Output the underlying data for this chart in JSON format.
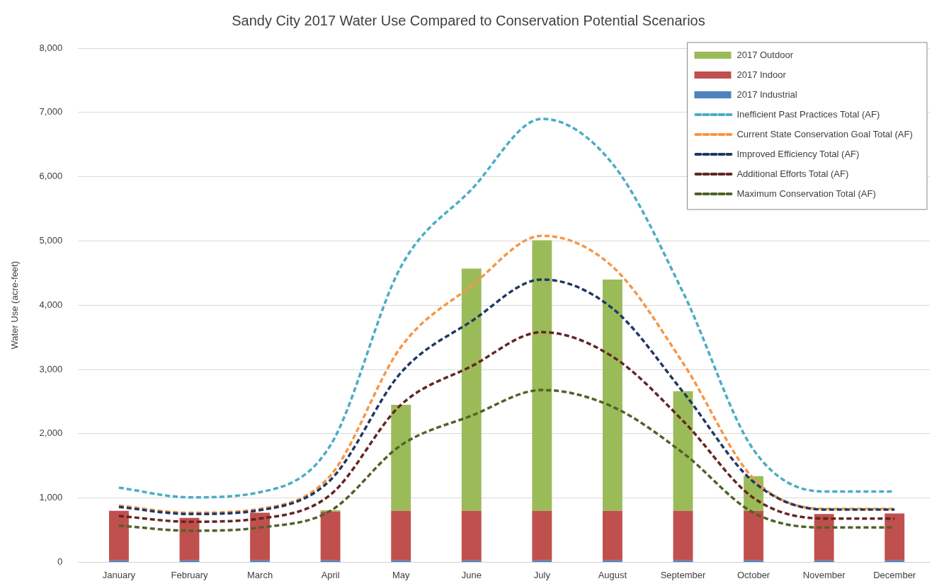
{
  "chart_data": {
    "type": "bar",
    "title": "Sandy City 2017 Water Use Compared to Conservation Potential Scenarios",
    "ylabel": "Water Use (acre-feet)",
    "categories": [
      "January",
      "February",
      "March",
      "April",
      "May",
      "June",
      "July",
      "August",
      "September",
      "October",
      "November",
      "December"
    ],
    "stacked": true,
    "ylim": [
      0,
      8000
    ],
    "yticks": [
      {
        "value": 0,
        "label": "0"
      },
      {
        "value": 1000,
        "label": "1,000"
      },
      {
        "value": 2000,
        "label": "2,000"
      },
      {
        "value": 3000,
        "label": "3,000"
      },
      {
        "value": 4000,
        "label": "4,000"
      },
      {
        "value": 5000,
        "label": "5,000"
      },
      {
        "value": 6000,
        "label": "6,000"
      },
      {
        "value": 7000,
        "label": "7,000"
      },
      {
        "value": 8000,
        "label": "8,000"
      }
    ],
    "grid": "y",
    "legend": "top right",
    "line_style": "dashed",
    "marker": "none",
    "series": [
      {
        "name": "2017 Industrial",
        "color": "#4f81bd",
        "values": [
          30,
          30,
          30,
          30,
          30,
          30,
          30,
          30,
          30,
          30,
          30,
          30
        ]
      },
      {
        "name": "2017 Indoor",
        "color": "#c0504d",
        "values": [
          770,
          660,
          740,
          760,
          770,
          770,
          770,
          770,
          770,
          770,
          720,
          730
        ]
      },
      {
        "name": "2017 Outdoor",
        "color": "#9bbb59",
        "values": [
          0,
          0,
          0,
          20,
          1650,
          3770,
          4210,
          3600,
          1860,
          540,
          0,
          0
        ]
      },
      {
        "name": "Inefficient Past Practices Total (AF)",
        "type": "line",
        "color": "#4bacc6",
        "values": [
          1160,
          1010,
          1090,
          1820,
          4600,
          5800,
          6900,
          6200,
          4200,
          1750,
          1100,
          1100
        ]
      },
      {
        "name": "Current State Conservation Goal Total (AF)",
        "type": "line",
        "color": "#f79646",
        "values": [
          880,
          770,
          830,
          1350,
          3350,
          4300,
          5080,
          4600,
          3100,
          1300,
          830,
          830
        ]
      },
      {
        "name": "Improved Efficiency Total (AF)",
        "type": "line",
        "color": "#1f3864",
        "values": [
          860,
          750,
          810,
          1280,
          2950,
          3750,
          4400,
          3950,
          2650,
          1250,
          820,
          820
        ]
      },
      {
        "name": "Additional Efforts Total (AF)",
        "type": "line",
        "color": "#632523",
        "values": [
          720,
          630,
          680,
          1050,
          2450,
          3050,
          3580,
          3200,
          2200,
          1000,
          680,
          680
        ]
      },
      {
        "name": "Maximum Conservation Total (AF)",
        "type": "line",
        "color": "#4f6228",
        "values": [
          570,
          490,
          540,
          800,
          1820,
          2280,
          2680,
          2420,
          1700,
          770,
          540,
          540
        ]
      }
    ]
  }
}
